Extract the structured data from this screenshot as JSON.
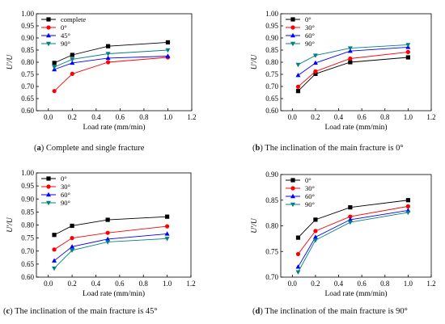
{
  "charts": [
    {
      "id": "a",
      "caption_letter": "a",
      "caption_text": "Complete and single fracture",
      "chart_data": {
        "type": "line",
        "title": "",
        "xlabel": "Load rate (mm/min)",
        "ylabel": "U′/U",
        "x": [
          0.05,
          0.2,
          0.5,
          1.0
        ],
        "xlim": [
          -0.1,
          1.2
        ],
        "ylim": [
          0.6,
          1.0
        ],
        "xticks": [
          "0.0",
          "0.2",
          "0.4",
          "0.6",
          "0.8",
          "1.0",
          "1.2"
        ],
        "yticks": [
          "0.60",
          "0.65",
          "0.70",
          "0.75",
          "0.80",
          "0.85",
          "0.90",
          "0.95",
          "1.00"
        ],
        "legend_position": "top-left",
        "grid": false,
        "series": [
          {
            "name": "complete",
            "color": "#000000",
            "marker": "square",
            "values": [
              0.797,
              0.83,
              0.866,
              0.882
            ]
          },
          {
            "name": "0°",
            "color": "#ff0000",
            "marker": "circle",
            "values": [
              0.681,
              0.752,
              0.8,
              0.82
            ]
          },
          {
            "name": "45°",
            "color": "#0000ff",
            "marker": "triangle-up",
            "values": [
              0.77,
              0.797,
              0.817,
              0.825
            ]
          },
          {
            "name": "90°",
            "color": "#008080",
            "marker": "triangle-down",
            "values": [
              0.78,
              0.812,
              0.835,
              0.85
            ]
          }
        ]
      }
    },
    {
      "id": "b",
      "caption_letter": "b",
      "caption_text": "The inclination of the main fracture is 0°",
      "chart_data": {
        "type": "line",
        "title": "",
        "xlabel": "Load rate (mm/min)",
        "ylabel": "U′/U",
        "x": [
          0.05,
          0.2,
          0.5,
          1.0
        ],
        "xlim": [
          -0.1,
          1.2
        ],
        "ylim": [
          0.6,
          1.0
        ],
        "xticks": [
          "0.0",
          "0.2",
          "0.4",
          "0.6",
          "0.8",
          "1.0",
          "1.2"
        ],
        "yticks": [
          "0.60",
          "0.65",
          "0.70",
          "0.75",
          "0.80",
          "0.85",
          "0.90",
          "0.95",
          "1.00"
        ],
        "legend_position": "top-left",
        "grid": false,
        "series": [
          {
            "name": "0°",
            "color": "#000000",
            "marker": "square",
            "values": [
              0.681,
              0.752,
              0.8,
              0.82
            ]
          },
          {
            "name": "30°",
            "color": "#ff0000",
            "marker": "circle",
            "values": [
              0.699,
              0.762,
              0.815,
              0.842
            ]
          },
          {
            "name": "60°",
            "color": "#0000ff",
            "marker": "triangle-up",
            "values": [
              0.746,
              0.797,
              0.846,
              0.862
            ]
          },
          {
            "name": "90°",
            "color": "#008080",
            "marker": "triangle-down",
            "values": [
              0.79,
              0.828,
              0.858,
              0.872
            ]
          }
        ]
      }
    },
    {
      "id": "c",
      "caption_letter": "c",
      "caption_text": "The inclination of the main fracture is 45°",
      "chart_data": {
        "type": "line",
        "title": "",
        "xlabel": "Load rate (mm/min)",
        "ylabel": "U′/U",
        "x": [
          0.05,
          0.2,
          0.5,
          1.0
        ],
        "xlim": [
          -0.1,
          1.2
        ],
        "ylim": [
          0.6,
          1.0
        ],
        "xticks": [
          "0.0",
          "0.2",
          "0.4",
          "0.6",
          "0.8",
          "1.0",
          "1.2"
        ],
        "yticks": [
          "0.60",
          "0.65",
          "0.70",
          "0.75",
          "0.80",
          "0.85",
          "0.90",
          "0.95",
          "1.00"
        ],
        "legend_position": "top-left",
        "grid": false,
        "series": [
          {
            "name": "0°",
            "color": "#000000",
            "marker": "square",
            "values": [
              0.762,
              0.797,
              0.82,
              0.832
            ]
          },
          {
            "name": "30°",
            "color": "#ff0000",
            "marker": "circle",
            "values": [
              0.706,
              0.75,
              0.77,
              0.795
            ]
          },
          {
            "name": "60°",
            "color": "#0000ff",
            "marker": "triangle-up",
            "values": [
              0.663,
              0.717,
              0.746,
              0.766
            ]
          },
          {
            "name": "90°",
            "color": "#008080",
            "marker": "triangle-down",
            "values": [
              0.634,
              0.703,
              0.735,
              0.748
            ]
          }
        ]
      }
    },
    {
      "id": "d",
      "caption_letter": "d",
      "caption_text": "The inclination of the main fracture is 90°",
      "chart_data": {
        "type": "line",
        "title": "",
        "xlabel": "Load rate (mm/min)",
        "ylabel": "U′/U",
        "x": [
          0.05,
          0.2,
          0.5,
          1.0
        ],
        "xlim": [
          -0.1,
          1.2
        ],
        "ylim": [
          0.7,
          0.9
        ],
        "xticks": [
          "0.0",
          "0.2",
          "0.4",
          "0.6",
          "0.8",
          "1.0",
          "1.2"
        ],
        "yticks": [
          "0.70",
          "0.75",
          "0.80",
          "0.85",
          "0.90"
        ],
        "legend_position": "top-left",
        "grid": false,
        "series": [
          {
            "name": "0°",
            "color": "#000000",
            "marker": "square",
            "values": [
              0.777,
              0.812,
              0.836,
              0.85
            ]
          },
          {
            "name": "30°",
            "color": "#ff0000",
            "marker": "circle",
            "values": [
              0.745,
              0.79,
              0.818,
              0.838
            ]
          },
          {
            "name": "60°",
            "color": "#0000ff",
            "marker": "triangle-up",
            "values": [
              0.72,
              0.778,
              0.812,
              0.83
            ]
          },
          {
            "name": "90°",
            "color": "#008080",
            "marker": "triangle-down",
            "values": [
              0.71,
              0.772,
              0.807,
              0.826
            ]
          }
        ]
      }
    }
  ]
}
